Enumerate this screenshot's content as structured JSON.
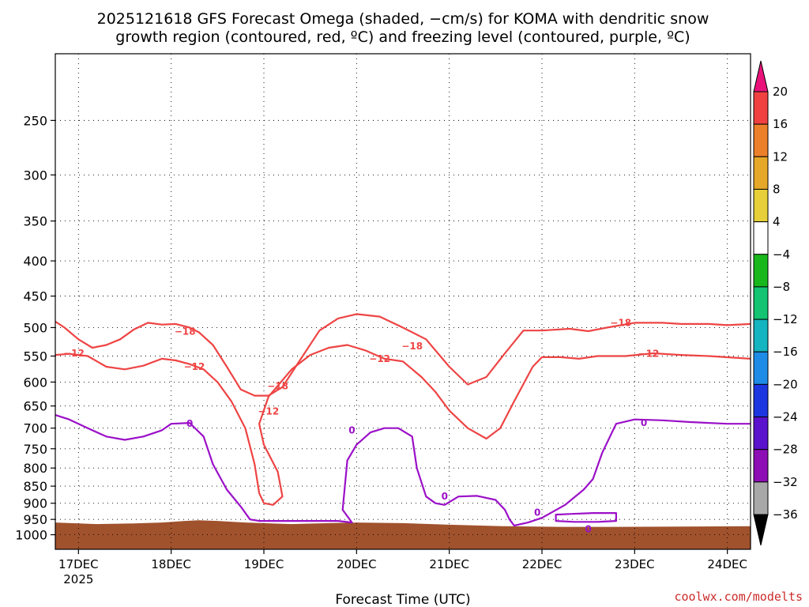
{
  "title": {
    "line1": "2025121618 GFS Forecast Omega (shaded, −cm/s) for KOMA with dendritic snow",
    "line2": "growth region (contoured, red, ºC) and freezing level (contoured, purple, ºC)"
  },
  "x_axis_label": "Forecast Time (UTC)",
  "credit": "coolwx.com/modelts",
  "colors": {
    "ground": "#a0522d",
    "dgz_contour": "#ee4444",
    "freezing_contour": "#9b10c8"
  },
  "chart_data": {
    "type": "heatmap",
    "title": "2025121618 GFS Forecast Omega (shaded, −cm/s) for KOMA with dendritic snow growth region (contoured, red, ºC) and freezing level (contoured, purple, ºC)",
    "xlabel": "Forecast Time (UTC)",
    "ylabel": "",
    "x_tick_labels": [
      "17DEC",
      "18DEC",
      "19DEC",
      "20DEC",
      "21DEC",
      "22DEC",
      "23DEC",
      "24DEC"
    ],
    "x_year_label": "2025",
    "x_range_days": [
      16.75,
      24.25
    ],
    "y_tick_labels": [
      "250",
      "300",
      "350",
      "400",
      "450",
      "500",
      "550",
      "600",
      "650",
      "700",
      "750",
      "800",
      "850",
      "900",
      "950",
      "1000"
    ],
    "y_range_hpa": [
      200,
      1050
    ],
    "y_scale": "log",
    "grid": true,
    "colorbar": {
      "labels": [
        "20",
        "16",
        "12",
        "8",
        "4",
        "−4",
        "−8",
        "−12",
        "−16",
        "−20",
        "−24",
        "−28",
        "−32",
        "−36"
      ],
      "colors": [
        "#e8127a",
        "#f04040",
        "#ec7f2a",
        "#e6a828",
        "#e6cf38",
        "#ffffff",
        "#18b81c",
        "#14c472",
        "#14b4c0",
        "#1e8ce6",
        "#1c36e0",
        "#5a12cc",
        "#8c0eb4",
        "#a8a8a8",
        "#000000"
      ]
    },
    "ground_surface_hpa": {
      "x": [
        16.75,
        17.2,
        17.6,
        17.9,
        18.15,
        18.3,
        18.5,
        18.8,
        19.3,
        19.7,
        20.0,
        20.5,
        21.0,
        21.6,
        22.2,
        22.8,
        23.5,
        24.25
      ],
      "p": [
        960,
        965,
        963,
        960,
        955,
        953,
        955,
        960,
        965,
        962,
        960,
        962,
        967,
        972,
        974,
        974,
        973,
        972
      ]
    },
    "contours": [
      {
        "name": "−18",
        "color": "#ee4444",
        "labels_at": [
          [
            18.15,
            507
          ],
          [
            19.15,
            608
          ],
          [
            20.6,
            532
          ],
          [
            22.85,
            492
          ]
        ],
        "x": [
          16.75,
          16.85,
          17.0,
          17.15,
          17.3,
          17.45,
          17.6,
          17.75,
          17.9,
          18.05,
          18.2,
          18.3,
          18.45,
          18.6,
          18.75,
          18.9,
          19.05,
          19.2,
          19.4,
          19.6,
          19.8,
          20.0,
          20.25,
          20.5,
          20.75,
          21.0,
          21.2,
          21.4,
          21.6,
          21.8,
          22.0,
          22.3,
          22.5,
          22.7,
          23.0,
          23.3,
          23.5,
          23.8,
          24.0,
          24.25
        ],
        "p": [
          490,
          500,
          520,
          535,
          530,
          520,
          503,
          492,
          495,
          494,
          500,
          508,
          530,
          570,
          615,
          628,
          628,
          610,
          555,
          505,
          485,
          478,
          482,
          500,
          520,
          570,
          605,
          590,
          545,
          505,
          505,
          502,
          506,
          500,
          492,
          492,
          494,
          494,
          496,
          494
        ]
      },
      {
        "name": "−12",
        "color": "#ee4444",
        "labels_at": [
          [
            16.95,
            545
          ],
          [
            18.25,
            570
          ],
          [
            19.05,
            662
          ],
          [
            20.25,
            555
          ],
          [
            23.15,
            546
          ]
        ],
        "x": [
          16.75,
          16.9,
          17.1,
          17.3,
          17.5,
          17.7,
          17.9,
          18.05,
          18.2,
          18.35,
          18.5,
          18.65,
          18.8,
          18.9,
          18.95,
          19.0,
          19.1,
          19.2,
          19.15,
          19.0,
          18.95,
          19.05,
          19.3,
          19.5,
          19.7,
          19.9,
          20.1,
          20.3,
          20.5,
          20.7,
          20.85,
          21.0,
          21.2,
          21.4,
          21.55,
          21.7,
          21.9,
          22.0,
          22.2,
          22.4,
          22.6,
          22.9,
          23.2,
          23.5,
          23.8,
          24.25
        ],
        "p": [
          548,
          546,
          550,
          570,
          575,
          568,
          555,
          558,
          565,
          575,
          600,
          640,
          700,
          790,
          870,
          900,
          905,
          880,
          810,
          740,
          690,
          630,
          575,
          548,
          535,
          530,
          540,
          555,
          560,
          590,
          620,
          660,
          700,
          725,
          700,
          640,
          570,
          552,
          552,
          555,
          550,
          550,
          545,
          548,
          550,
          555
        ]
      },
      {
        "name": "0",
        "color": "#9b10c8",
        "labels_at": [
          [
            18.2,
            690
          ],
          [
            19.95,
            705
          ],
          [
            20.95,
            880
          ],
          [
            21.95,
            928
          ],
          [
            22.5,
            982
          ],
          [
            23.1,
            688
          ]
        ],
        "x": [
          16.75,
          16.9,
          17.1,
          17.3,
          17.5,
          17.7,
          17.9,
          18.0,
          18.2,
          18.35,
          18.45,
          18.6,
          18.75,
          18.85,
          18.95,
          19.05,
          19.2,
          19.4,
          19.6,
          19.8,
          19.95,
          19.85,
          19.9,
          20.0,
          20.15,
          20.3,
          20.45,
          20.6,
          20.65,
          20.75,
          20.85,
          20.95,
          21.1,
          21.3,
          21.5,
          21.6,
          21.65,
          21.7,
          21.85,
          22.0,
          22.25,
          22.45,
          22.55,
          22.65,
          22.8,
          23.0,
          23.3,
          23.6,
          24.0,
          24.25
        ],
        "p": [
          670,
          680,
          700,
          720,
          728,
          720,
          705,
          690,
          688,
          720,
          790,
          860,
          910,
          950,
          955,
          955,
          955,
          955,
          955,
          955,
          960,
          920,
          780,
          740,
          710,
          700,
          700,
          720,
          800,
          880,
          900,
          905,
          880,
          878,
          890,
          920,
          950,
          970,
          960,
          945,
          905,
          860,
          830,
          760,
          690,
          680,
          682,
          686,
          690,
          690
        ]
      },
      {
        "name": "0",
        "color": "#9b10c8",
        "closed": true,
        "x": [
          22.15,
          22.3,
          22.55,
          22.8,
          22.8,
          22.6,
          22.35,
          22.15,
          22.15
        ],
        "p": [
          935,
          933,
          930,
          930,
          955,
          958,
          958,
          955,
          935
        ]
      }
    ]
  }
}
